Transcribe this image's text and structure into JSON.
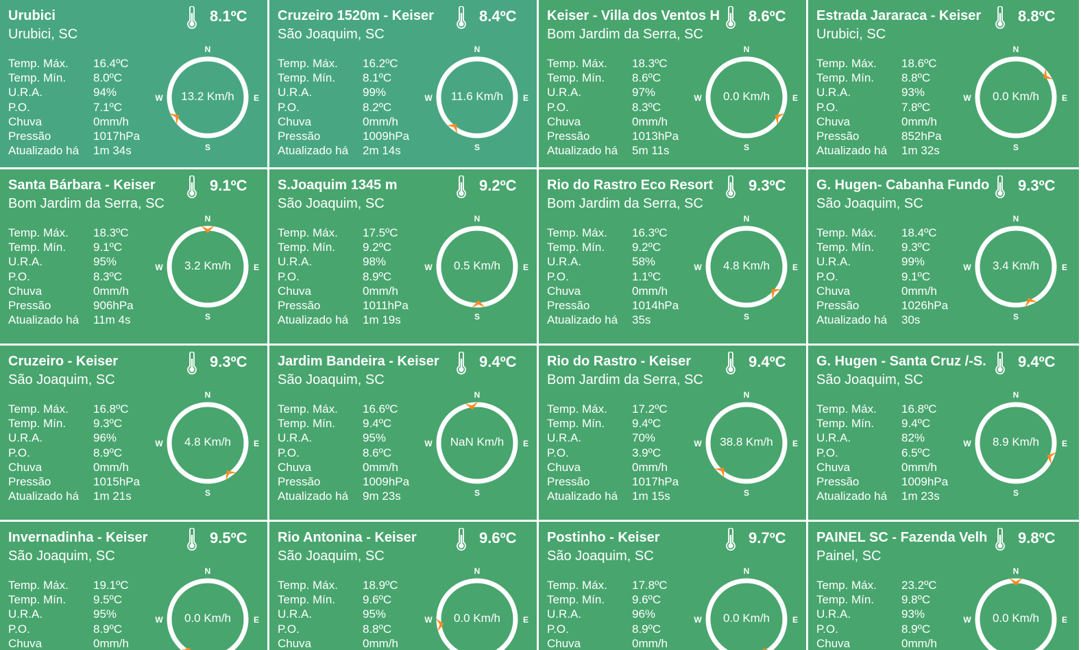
{
  "labels": {
    "max": "Temp. Máx.",
    "min": "Temp. Mín.",
    "ura": "U.R.A.",
    "po": "P.O.",
    "rain": "Chuva",
    "pressure": "Pressão",
    "updated": "Atualizado há"
  },
  "compass_letters": {
    "n": "N",
    "s": "S",
    "e": "E",
    "w": "W"
  },
  "colors": {
    "card": "#48a56e",
    "card_alt": "#48a782",
    "arrow": "#ff8a1f"
  },
  "stations": [
    {
      "name": "Urubici",
      "city": "Urubici, SC",
      "temp": "8.1ºC",
      "max": "16.4ºC",
      "min": "8.0ºC",
      "ura": "94%",
      "po": "7.1ºC",
      "rain": "0mm/h",
      "pressure": "1017hPa",
      "updated": "1m 34s",
      "wind": "13.2 Km/h",
      "dir": 238
    },
    {
      "name": "Cruzeiro 1520m - Keiser",
      "city": "São Joaquim, SC",
      "temp": "8.4ºC",
      "max": "16.2ºC",
      "min": "8.1ºC",
      "ura": "99%",
      "po": "8.2ºC",
      "rain": "0mm/h",
      "pressure": "1009hPa",
      "updated": "2m 14s",
      "wind": "11.6 Km/h",
      "dir": 218
    },
    {
      "name": "Keiser - Villa dos Ventos H",
      "city": "Bom Jardim da Serra, SC",
      "temp": "8.6ºC",
      "max": "18.3ºC",
      "min": "8.6ºC",
      "ura": "97%",
      "po": "8.3ºC",
      "rain": "0mm/h",
      "pressure": "1013hPa",
      "updated": "5m 11s",
      "wind": "0.0 Km/h",
      "dir": 122
    },
    {
      "name": "Estrada Jararaca - Keiser",
      "city": "Urubici, SC",
      "temp": "8.8ºC",
      "max": "18.6ºC",
      "min": "8.8ºC",
      "ura": "93%",
      "po": "7.8ºC",
      "rain": "0mm/h",
      "pressure": "852hPa",
      "updated": "1m 32s",
      "wind": "0.0 Km/h",
      "dir": 55
    },
    {
      "name": "Santa Bárbara - Keiser",
      "city": "Bom Jardim da Serra, SC",
      "temp": "9.1ºC",
      "max": "18.3ºC",
      "min": "9.1ºC",
      "ura": "95%",
      "po": "8.3ºC",
      "rain": "0mm/h",
      "pressure": "906hPa",
      "updated": "11m 4s",
      "wind": "3.2 Km/h",
      "dir": 0
    },
    {
      "name": "S.Joaquim 1345 m",
      "city": "São Joaquim, SC",
      "temp": "9.2ºC",
      "max": "17.5ºC",
      "min": "9.2ºC",
      "ura": "98%",
      "po": "8.9ºC",
      "rain": "0mm/h",
      "pressure": "1011hPa",
      "updated": "1m 19s",
      "wind": "0.5 Km/h",
      "dir": 178
    },
    {
      "name": "Rio do Rastro Eco Resort",
      "city": "Bom Jardim da Serra, SC",
      "temp": "9.3ºC",
      "max": "16.3ºC",
      "min": "9.2ºC",
      "ura": "58%",
      "po": "1.1ºC",
      "rain": "0mm/h",
      "pressure": "1014hPa",
      "updated": "35s",
      "wind": "4.8 Km/h",
      "dir": 132
    },
    {
      "name": "G. Hugen- Cabanha Fundo",
      "city": "São Joaquim, SC",
      "temp": "9.3ºC",
      "max": "18.4ºC",
      "min": "9.3ºC",
      "ura": "99%",
      "po": "9.1ºC",
      "rain": "0mm/h",
      "pressure": "1026hPa",
      "updated": "30s",
      "wind": "3.4 Km/h",
      "dir": 158
    },
    {
      "name": "Cruzeiro - Keiser",
      "city": "São Joaquim, SC",
      "temp": "9.3ºC",
      "max": "16.8ºC",
      "min": "9.3ºC",
      "ura": "96%",
      "po": "8.9ºC",
      "rain": "0mm/h",
      "pressure": "1015hPa",
      "updated": "1m 21s",
      "wind": "4.8 Km/h",
      "dir": 145
    },
    {
      "name": "Jardim Bandeira - Keiser",
      "city": "São Joaquim, SC",
      "temp": "9.4ºC",
      "max": "16.6ºC",
      "min": "9.4ºC",
      "ura": "95%",
      "po": "8.6ºC",
      "rain": "0mm/h",
      "pressure": "1009hPa",
      "updated": "9m 23s",
      "wind": "NaN Km/h",
      "dir": 352
    },
    {
      "name": "Rio do Rastro - Keiser",
      "city": "Bom Jardim da Serra, SC",
      "temp": "9.4ºC",
      "max": "17.2ºC",
      "min": "9.4ºC",
      "ura": "70%",
      "po": "3.9ºC",
      "rain": "0mm/h",
      "pressure": "1017hPa",
      "updated": "1m 15s",
      "wind": "38.8 Km/h",
      "dir": 222
    },
    {
      "name": "G. Hugen - Santa Cruz /-S.",
      "city": "São Joaquim, SC",
      "temp": "9.4ºC",
      "max": "16.8ºC",
      "min": "9.4ºC",
      "ura": "82%",
      "po": "6.5ºC",
      "rain": "0mm/h",
      "pressure": "1009hPa",
      "updated": "1m 23s",
      "wind": "8.9 Km/h",
      "dir": 112
    },
    {
      "name": "Invernadinha - Keiser",
      "city": "São Joaquim, SC",
      "temp": "9.5ºC",
      "max": "19.1ºC",
      "min": "9.5ºC",
      "ura": "95%",
      "po": "8.9ºC",
      "rain": "0mm/h",
      "pressure": "",
      "updated": "",
      "wind": "0.0 Km/h",
      "dir": 212
    },
    {
      "name": "Rio Antonina - Keiser",
      "city": "São Joaquim, SC",
      "temp": "9.6ºC",
      "max": "18.9ºC",
      "min": "9.6ºC",
      "ura": "95%",
      "po": "8.8ºC",
      "rain": "0mm/h",
      "pressure": "",
      "updated": "",
      "wind": "0.0 Km/h",
      "dir": 262
    },
    {
      "name": "Postinho - Keiser",
      "city": "São Joaquim, SC",
      "temp": "9.7ºC",
      "max": "17.8ºC",
      "min": "9.6ºC",
      "ura": "96%",
      "po": "8.9ºC",
      "rain": "0mm/h",
      "pressure": "",
      "updated": "",
      "wind": "0.0 Km/h",
      "dir": 150
    },
    {
      "name": "PAINEL SC - Fazenda Velh",
      "city": "Painel, SC",
      "temp": "9.8ºC",
      "max": "23.2ºC",
      "min": "9.8ºC",
      "ura": "93%",
      "po": "8.9ºC",
      "rain": "0mm/h",
      "pressure": "",
      "updated": "",
      "wind": "0.0 Km/h",
      "dir": 0
    }
  ]
}
